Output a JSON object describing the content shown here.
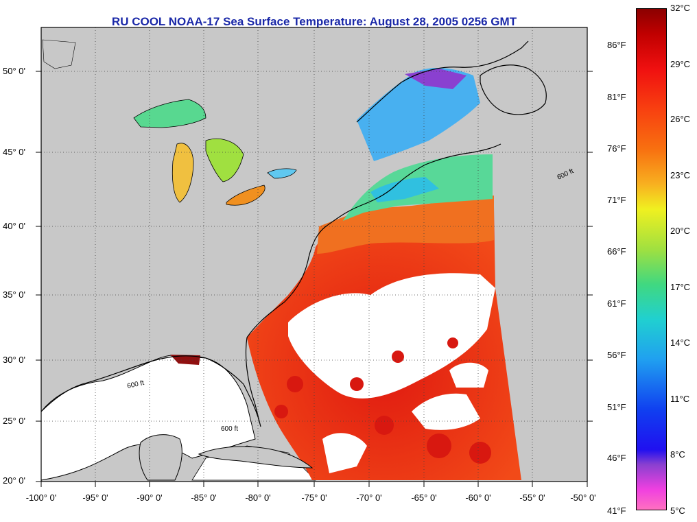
{
  "title": "RU COOL  NOAA-17  Sea Surface Temperature:  August 28, 2005 0256 GMT",
  "map": {
    "lat_labels": [
      "50° 0'",
      "45° 0'",
      "40° 0'",
      "35° 0'",
      "30° 0'",
      "25° 0'",
      "20° 0'"
    ],
    "lon_labels": [
      "-100° 0'",
      "-95° 0'",
      "-90° 0'",
      "-85° 0'",
      "-80° 0'",
      "-75° 0'",
      "-70° 0'",
      "-65° 0'",
      "-60° 0'",
      "-55° 0'",
      "-50° 0'"
    ],
    "contour_label": "600 ft",
    "colors": {
      "land": "#c8c8c8",
      "no_data": "#ffffff",
      "coastline": "#000000"
    }
  },
  "colorbar": {
    "fahrenheit_labels": [
      "86°F",
      "81°F",
      "76°F",
      "71°F",
      "66°F",
      "61°F",
      "56°F",
      "51°F",
      "46°F",
      "41°F"
    ],
    "celsius_labels": [
      "32°C",
      "29°C",
      "26°C",
      "23°C",
      "20°C",
      "17°C",
      "14°C",
      "11°C",
      "8°C",
      "5°C"
    ]
  }
}
